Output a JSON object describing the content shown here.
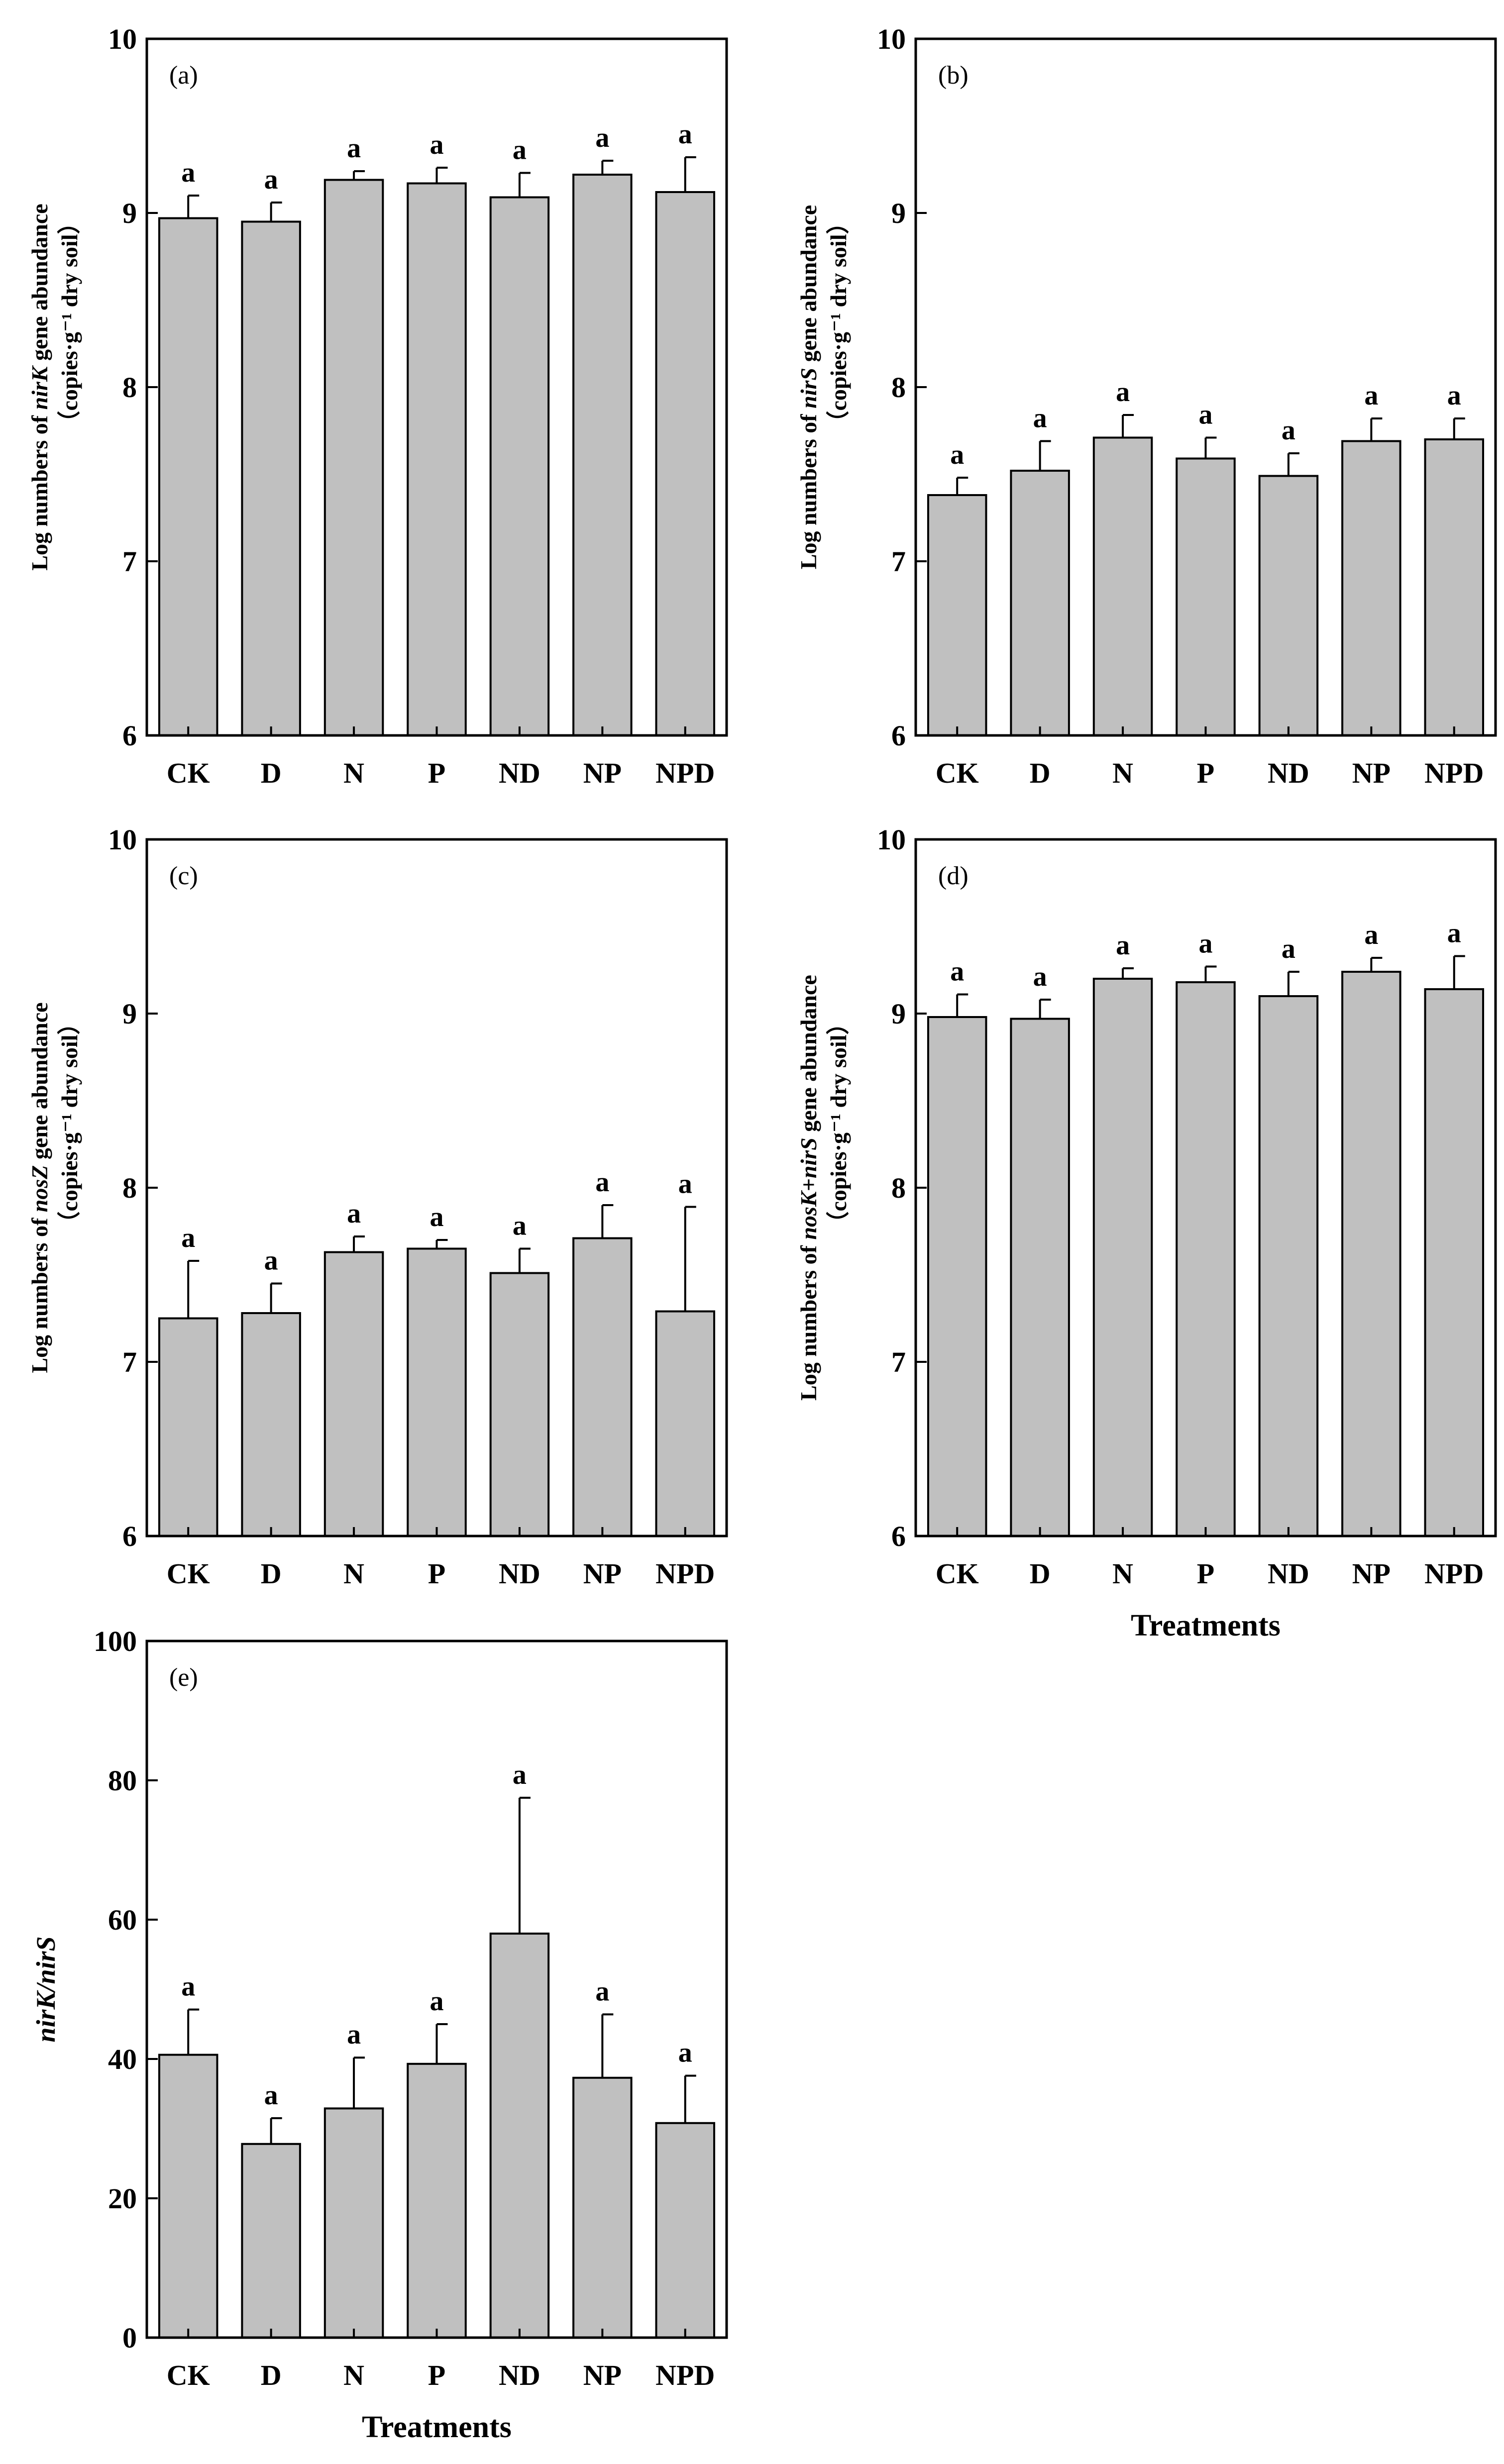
{
  "figure": {
    "x_axis_title": "Treatments"
  },
  "colors": {
    "bar_fill": "#c0c0c0",
    "stroke": "#000000",
    "background": "#ffffff"
  },
  "chart_data": [
    {
      "type": "bar",
      "panel": "(a)",
      "title": "",
      "ylabel_prefix": "Log numbers of ",
      "ylabel_gene": "nirK",
      "ylabel_suffix": " gene abundance",
      "ylabel_units": "（copies·g⁻¹ dry soil）",
      "xlabel": "",
      "categories": [
        "CK",
        "D",
        "N",
        "P",
        "ND",
        "NP",
        "NPD"
      ],
      "values": [
        8.97,
        8.95,
        9.19,
        9.17,
        9.09,
        9.22,
        9.12
      ],
      "errors": [
        0.13,
        0.11,
        0.05,
        0.09,
        0.14,
        0.08,
        0.2
      ],
      "significance": [
        "a",
        "a",
        "a",
        "a",
        "a",
        "a",
        "a"
      ],
      "ylim": [
        6,
        10
      ],
      "yticks": [
        6,
        7,
        8,
        9,
        10
      ],
      "ytick_labels": [
        "6",
        "7",
        "8",
        "9",
        "10"
      ],
      "legend": "none",
      "grid": false
    },
    {
      "type": "bar",
      "panel": "(b)",
      "title": "",
      "ylabel_prefix": "Log numbers of ",
      "ylabel_gene": "nirS",
      "ylabel_suffix": " gene abundance",
      "ylabel_units": "（copies·g⁻¹ dry soil）",
      "xlabel": "",
      "categories": [
        "CK",
        "D",
        "N",
        "P",
        "ND",
        "NP",
        "NPD"
      ],
      "values": [
        7.38,
        7.52,
        7.71,
        7.59,
        7.49,
        7.69,
        7.7
      ],
      "errors": [
        0.1,
        0.17,
        0.13,
        0.12,
        0.13,
        0.13,
        0.12
      ],
      "significance": [
        "a",
        "a",
        "a",
        "a",
        "a",
        "a",
        "a"
      ],
      "ylim": [
        6,
        10
      ],
      "yticks": [
        6,
        7,
        8,
        9,
        10
      ],
      "ytick_labels": [
        "6",
        "7",
        "8",
        "9",
        "10"
      ],
      "legend": "none",
      "grid": false
    },
    {
      "type": "bar",
      "panel": "(c)",
      "title": "",
      "ylabel_prefix": "Log numbers of ",
      "ylabel_gene": "nosZ",
      "ylabel_suffix": " gene abundance",
      "ylabel_units": "（copies·g⁻¹ dry soil）",
      "xlabel": "",
      "categories": [
        "CK",
        "D",
        "N",
        "P",
        "ND",
        "NP",
        "NPD"
      ],
      "values": [
        7.25,
        7.28,
        7.63,
        7.65,
        7.51,
        7.71,
        7.29
      ],
      "errors": [
        0.33,
        0.17,
        0.09,
        0.05,
        0.14,
        0.19,
        0.6
      ],
      "significance": [
        "a",
        "a",
        "a",
        "a",
        "a",
        "a",
        "a"
      ],
      "ylim": [
        6,
        10
      ],
      "yticks": [
        6,
        7,
        8,
        9,
        10
      ],
      "ytick_labels": [
        "6",
        "7",
        "8",
        "9",
        "10"
      ],
      "legend": "none",
      "grid": false
    },
    {
      "type": "bar",
      "panel": "(d)",
      "title": "",
      "ylabel_prefix": "Log numbers of ",
      "ylabel_gene": "nosK+nirS",
      "ylabel_suffix": " gene abundance",
      "ylabel_units": "（copies·g⁻¹ dry soil）",
      "xlabel": "Treatments",
      "categories": [
        "CK",
        "D",
        "N",
        "P",
        "ND",
        "NP",
        "NPD"
      ],
      "values": [
        8.98,
        8.97,
        9.2,
        9.18,
        9.1,
        9.24,
        9.14
      ],
      "errors": [
        0.13,
        0.11,
        0.06,
        0.09,
        0.14,
        0.08,
        0.19
      ],
      "significance": [
        "a",
        "a",
        "a",
        "a",
        "a",
        "a",
        "a"
      ],
      "ylim": [
        6,
        10
      ],
      "yticks": [
        6,
        7,
        8,
        9,
        10
      ],
      "ytick_labels": [
        "6",
        "7",
        "8",
        "9",
        "10"
      ],
      "legend": "none",
      "grid": false
    },
    {
      "type": "bar",
      "panel": "(e)",
      "title": "",
      "ylabel_gene": "nirK/nirS",
      "xlabel": "Treatments",
      "categories": [
        "CK",
        "D",
        "N",
        "P",
        "ND",
        "NP",
        "NPD"
      ],
      "values": [
        40.6,
        27.8,
        32.9,
        39.3,
        58.0,
        37.3,
        30.8
      ],
      "errors": [
        6.5,
        3.7,
        7.3,
        5.7,
        19.5,
        9.1,
        6.8
      ],
      "significance": [
        "a",
        "a",
        "a",
        "a",
        "a",
        "a",
        "a"
      ],
      "ylim": [
        0,
        100
      ],
      "yticks": [
        0,
        20,
        40,
        60,
        80,
        100
      ],
      "ytick_labels": [
        "0",
        "20",
        "40",
        "60",
        "80",
        "100"
      ],
      "legend": "none",
      "grid": false
    }
  ]
}
